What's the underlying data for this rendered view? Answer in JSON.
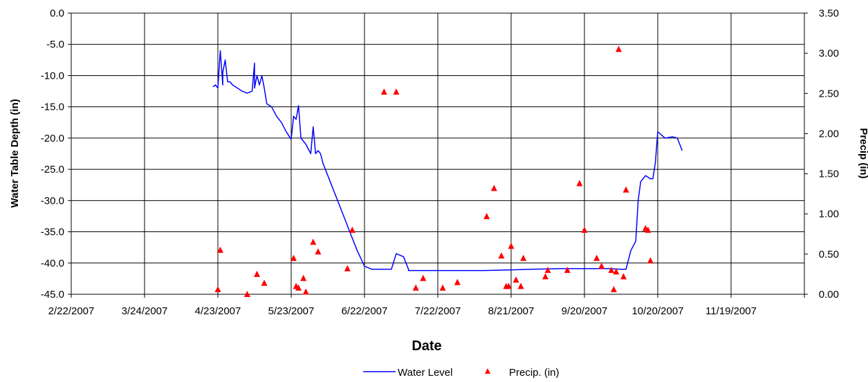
{
  "chart_data": {
    "type": "line",
    "title": "",
    "xlabel": "Date",
    "ylabel": "Water Table Depth (in)",
    "y2label": "Precip (in)",
    "x_ticks": [
      "2/22/2007",
      "3/24/2007",
      "4/23/2007",
      "5/23/2007",
      "6/22/2007",
      "7/22/2007",
      "8/21/2007",
      "9/20/2007",
      "10/20/2007",
      "11/19/2007"
    ],
    "xlim": [
      "2/22/2007",
      "12/19/2007"
    ],
    "ylim": [
      -45,
      0
    ],
    "y_ticks": [
      "0.0",
      "-5.0",
      "-10.0",
      "-15.0",
      "-20.0",
      "-25.0",
      "-30.0",
      "-35.0",
      "-40.0",
      "-45.0"
    ],
    "y2lim": [
      0,
      3.5
    ],
    "y2_ticks": [
      "3.50",
      "3.00",
      "2.50",
      "2.00",
      "1.50",
      "1.00",
      "0.50",
      "0.00"
    ],
    "grid": true,
    "legend_position": "bottom",
    "series": [
      {
        "name": "Water Level",
        "axis": "left",
        "type": "line",
        "color": "#0000ff",
        "x": [
          "4/21/2007",
          "4/22/2007",
          "4/23/2007",
          "4/24/2007",
          "4/25/2007",
          "4/25/2007",
          "4/26/2007",
          "4/27/2007",
          "4/28/2007",
          "4/29/2007",
          "5/1/2007",
          "5/3/2007",
          "5/5/2007",
          "5/7/2007",
          "5/8/2007",
          "5/8/2007",
          "5/9/2007",
          "5/10/2007",
          "5/11/2007",
          "5/12/2007",
          "5/13/2007",
          "5/15/2007",
          "5/17/2007",
          "5/19/2007",
          "5/21/2007",
          "5/23/2007",
          "5/24/2007",
          "5/25/2007",
          "5/26/2007",
          "5/27/2007",
          "5/29/2007",
          "5/31/2007",
          "6/1/2007",
          "6/2/2007",
          "6/3/2007",
          "6/4/2007",
          "6/5/2007",
          "6/7/2007",
          "6/10/2007",
          "6/13/2007",
          "6/16/2007",
          "6/19/2007",
          "6/22/2007",
          "6/25/2007",
          "6/28/2007",
          "7/1/2007",
          "7/3/2007",
          "7/5/2007",
          "7/8/2007",
          "7/10/2007",
          "7/10/2007",
          "7/11/2007",
          "7/13/2007",
          "7/15/2007",
          "7/16/2007",
          "7/20/2007",
          "7/30/2007",
          "8/10/2007",
          "8/20/2007",
          "8/30/2007",
          "9/10/2007",
          "9/20/2007",
          "9/30/2007",
          "10/5/2007",
          "10/7/2007",
          "10/9/2007",
          "10/11/2007",
          "10/12/2007",
          "10/13/2007",
          "10/15/2007",
          "10/17/2007",
          "10/18/2007",
          "10/19/2007",
          "10/20/2007",
          "10/23/2007",
          "10/26/2007",
          "10/28/2007",
          "10/29/2007",
          "10/30/2007"
        ],
        "y": [
          -11.8,
          -11.5,
          -12,
          -6,
          -11.5,
          -9.5,
          -7.5,
          -11,
          -11,
          -11.5,
          -12,
          -12.5,
          -12.8,
          -12.5,
          -8,
          -12,
          -10,
          -11.5,
          -10,
          -12,
          -14.5,
          -15,
          -16.5,
          -17.5,
          -19,
          -20.2,
          -16.5,
          -17,
          -14.8,
          -20,
          -21,
          -22.5,
          -18.2,
          -22.5,
          -22,
          -22.5,
          -24,
          -26,
          -29,
          -32,
          -35,
          -38,
          -40.5,
          -41,
          -41,
          -41,
          -41,
          -38.5,
          -39,
          -41,
          -41.2,
          -41.2,
          -41.2,
          -41.2,
          -41.2,
          -41.2,
          -41.2,
          -41.2,
          -41.1,
          -41,
          -40.9,
          -40.9,
          -40.9,
          -41,
          -41,
          -38,
          -36.5,
          -30,
          -27,
          -26,
          -26.5,
          -26.5,
          -24,
          -19,
          -20,
          -19.8,
          -20,
          -21,
          -22
        ]
      },
      {
        "name": "Precip. (in)",
        "axis": "right",
        "type": "scatter",
        "marker": "triangle",
        "color": "#ff0000",
        "x": [
          "4/23/2007",
          "4/24/2007",
          "5/5/2007",
          "5/9/2007",
          "5/12/2007",
          "5/24/2007",
          "5/25/2007",
          "5/26/2007",
          "5/28/2007",
          "5/29/2007",
          "6/1/2007",
          "6/3/2007",
          "6/15/2007",
          "6/17/2007",
          "6/30/2007",
          "7/5/2007",
          "7/13/2007",
          "7/16/2007",
          "7/24/2007",
          "7/30/2007",
          "8/11/2007",
          "8/14/2007",
          "8/17/2007",
          "8/19/2007",
          "8/20/2007",
          "8/21/2007",
          "8/23/2007",
          "8/25/2007",
          "8/26/2007",
          "9/4/2007",
          "9/5/2007",
          "9/13/2007",
          "9/18/2007",
          "9/20/2007",
          "9/25/2007",
          "9/27/2007",
          "10/1/2007",
          "10/2/2007",
          "10/3/2007",
          "10/4/2007",
          "10/6/2007",
          "10/7/2007",
          "10/15/2007",
          "10/16/2007",
          "10/17/2007"
        ],
        "y": [
          0.06,
          0.55,
          0.0,
          0.25,
          0.14,
          0.45,
          0.1,
          0.08,
          0.2,
          0.03,
          0.65,
          0.53,
          0.32,
          0.8,
          2.52,
          2.52,
          0.08,
          0.2,
          0.08,
          0.15,
          0.97,
          1.32,
          0.48,
          0.1,
          0.1,
          0.6,
          0.18,
          0.1,
          0.45,
          0.22,
          0.3,
          0.3,
          1.38,
          0.8,
          0.45,
          0.35,
          0.3,
          0.06,
          0.28,
          3.05,
          0.22,
          1.3,
          0.82,
          0.8,
          0.42
        ]
      }
    ]
  }
}
